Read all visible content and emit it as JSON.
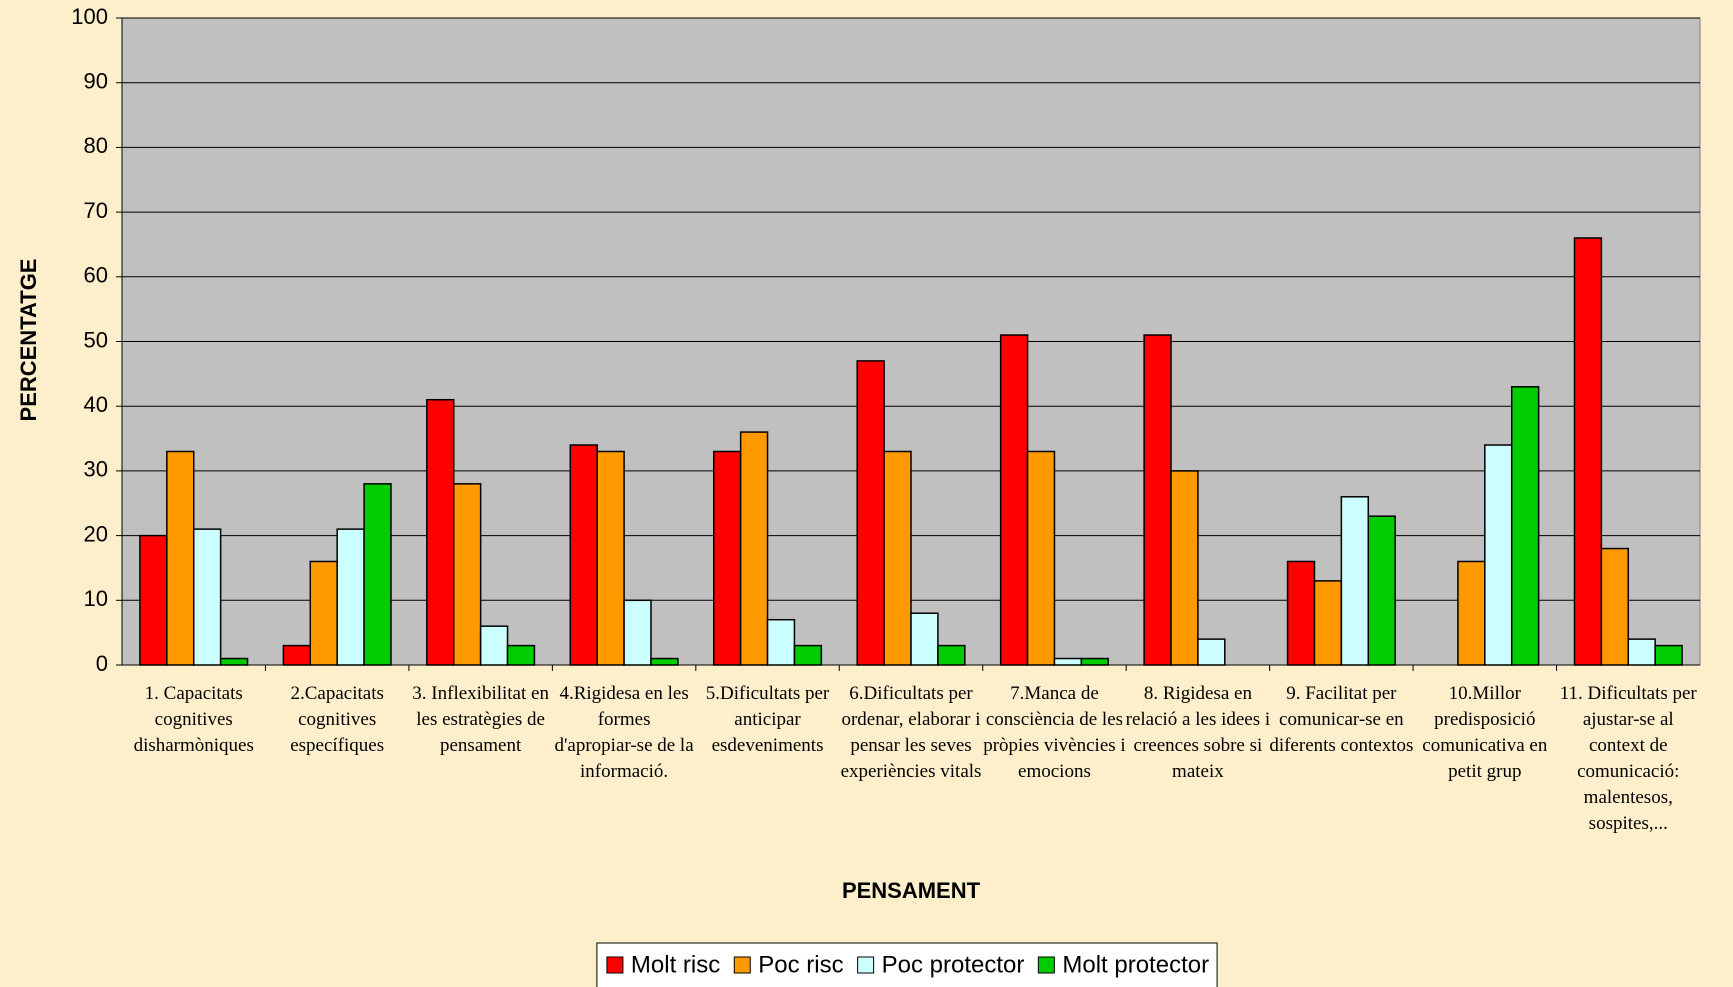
{
  "chart_data": {
    "type": "bar",
    "y_label": "PERCENTATGE",
    "x_label": "PENSAMENT",
    "categories": [
      "1. Capacitats cognitives disharmòniques",
      "2.Capacitats cognitives específiques",
      "3. Inflexibilitat en les estratègies de pensament",
      "4.Rigidesa en les formes d'apropiar-se de la informació.",
      "5.Dificultats per anticipar esdeveniments",
      "6.Dificultats per ordenar, elaborar i pensar les seves experiències vitals",
      "7.Manca de consciència de les pròpies vivències i emocions",
      "8. Rigidesa en relació a les idees i creences sobre si mateix",
      "9. Facilitat per comunicar-se en diferents contextos",
      "10.Millor predisposició comunicativa en petit grup",
      "11. Dificultats per ajustar-se al context de comunicació: malentesos, sospites,..."
    ],
    "series": [
      {
        "name": "Molt risc",
        "color": "#ff0000",
        "values": [
          20,
          3,
          41,
          34,
          33,
          47,
          51,
          51,
          16,
          0,
          66
        ]
      },
      {
        "name": "Poc risc",
        "color": "#ff9900",
        "values": [
          33,
          16,
          28,
          33,
          36,
          33,
          33,
          30,
          13,
          16,
          18
        ]
      },
      {
        "name": "Poc protector",
        "color": "#ccffff",
        "values": [
          21,
          21,
          6,
          10,
          7,
          8,
          1,
          4,
          26,
          34,
          4
        ]
      },
      {
        "name": "Molt protector",
        "color": "#00cc00",
        "values": [
          1,
          28,
          3,
          1,
          3,
          3,
          1,
          0,
          23,
          43,
          3
        ]
      }
    ],
    "ylim": [
      0,
      100
    ],
    "yticks": [
      0,
      10,
      20,
      30,
      40,
      50,
      60,
      70,
      80,
      90,
      100
    ],
    "grid": true,
    "legend": "bottom"
  }
}
